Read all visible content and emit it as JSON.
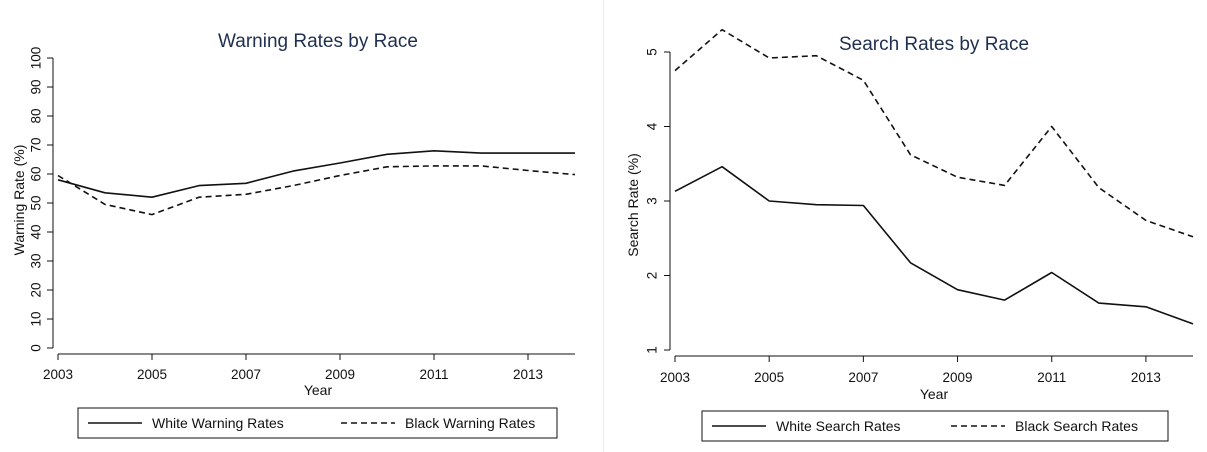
{
  "chart_data": [
    {
      "type": "line",
      "title": "Warning Rates by Race",
      "xlabel": "Year",
      "ylabel": "Warning Rate (%)",
      "xlim": [
        2003,
        2014
      ],
      "ylim": [
        0,
        100
      ],
      "x_ticks": [
        2003,
        2005,
        2007,
        2009,
        2011,
        2013
      ],
      "y_ticks": [
        0,
        10,
        20,
        30,
        40,
        50,
        60,
        70,
        80,
        90,
        100
      ],
      "grid": false,
      "legend_position": "bottom",
      "x": [
        2003,
        2004,
        2005,
        2006,
        2007,
        2008,
        2009,
        2010,
        2011,
        2012,
        2013,
        2014
      ],
      "series": [
        {
          "name": "White Warning Rates",
          "style": "solid",
          "values": [
            58,
            53.5,
            52,
            56,
            56.8,
            61,
            63.8,
            66.8,
            68,
            67.2,
            67.2,
            67.2
          ]
        },
        {
          "name": "Black Warning Rates",
          "style": "dashed",
          "values": [
            59.5,
            49.5,
            46,
            52,
            53,
            56,
            59.5,
            62.5,
            62.8,
            62.8,
            61.2,
            59.8
          ]
        }
      ]
    },
    {
      "type": "line",
      "title": "Search Rates by Race",
      "xlabel": "Year",
      "ylabel": "Search Rate (%)",
      "xlim": [
        2003,
        2014
      ],
      "ylim": [
        1,
        5
      ],
      "x_ticks": [
        2003,
        2005,
        2007,
        2009,
        2011,
        2013
      ],
      "y_ticks": [
        1,
        2,
        3,
        4,
        5
      ],
      "grid": false,
      "legend_position": "bottom",
      "x": [
        2003,
        2004,
        2005,
        2006,
        2007,
        2008,
        2009,
        2010,
        2011,
        2012,
        2013,
        2014
      ],
      "series": [
        {
          "name": "White Search Rates",
          "style": "solid",
          "values": [
            3.13,
            3.46,
            3.0,
            2.95,
            2.94,
            2.17,
            1.81,
            1.67,
            2.04,
            1.63,
            1.58,
            1.35
          ]
        },
        {
          "name": "Black Search Rates",
          "style": "dashed",
          "values": [
            4.75,
            5.3,
            4.92,
            4.95,
            4.62,
            3.62,
            3.32,
            3.21,
            4.0,
            3.18,
            2.74,
            2.52
          ]
        }
      ]
    }
  ],
  "colors": {
    "line": "#111111",
    "title": "#1f2f4f",
    "background": "#ffffff"
  }
}
